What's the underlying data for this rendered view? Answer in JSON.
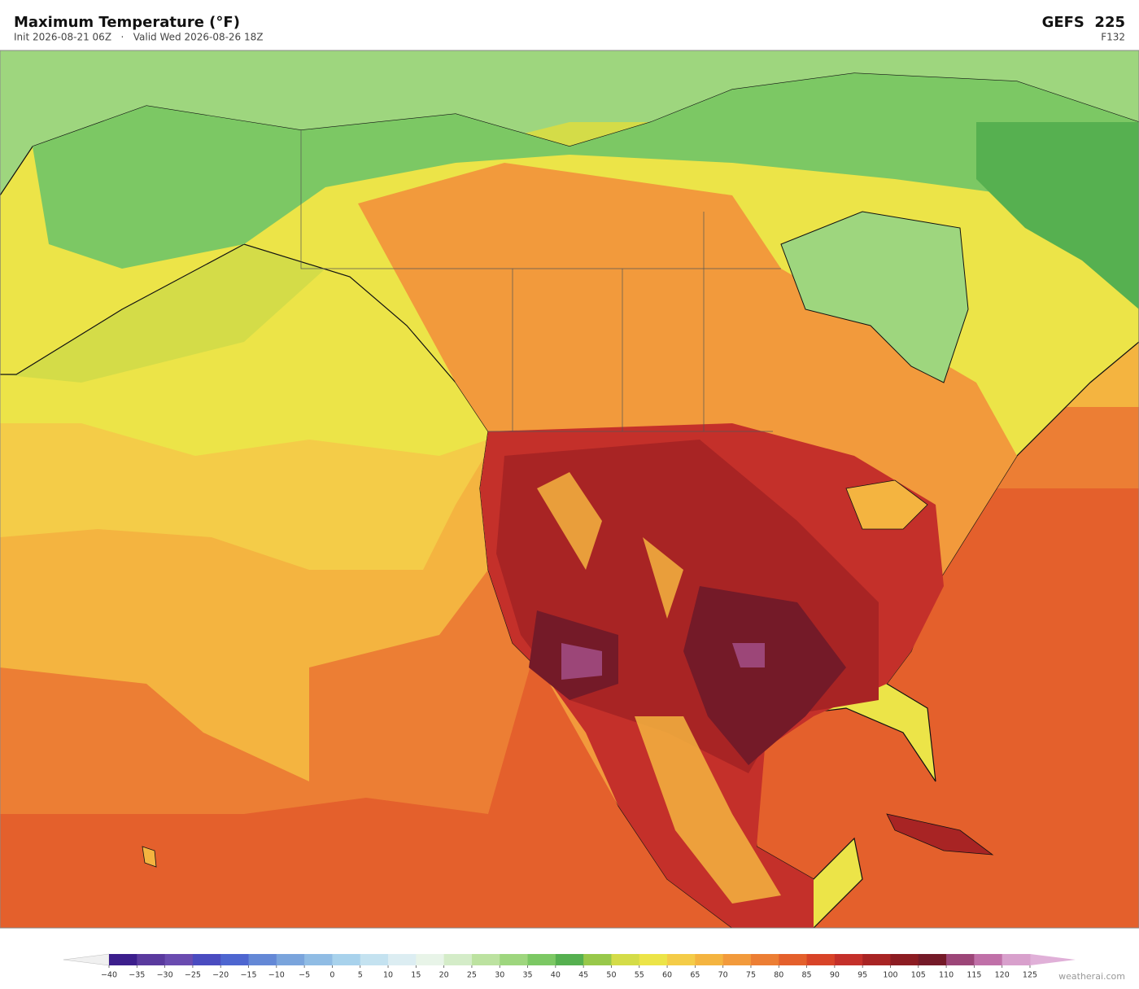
{
  "header": {
    "title": "Maximum Temperature  (°F)",
    "subtitle": "Init 2026-08-21 06Z   ·   Valid Wed 2026-08-26 18Z",
    "model": "GEFS  225",
    "forecast_hour": "F132"
  },
  "colorbar": {
    "ticks": [
      {
        "value": -40,
        "label": "−40"
      },
      {
        "value": -35,
        "label": "−35"
      },
      {
        "value": -30,
        "label": "−30"
      },
      {
        "value": -25,
        "label": "−25"
      },
      {
        "value": -20,
        "label": "−20"
      },
      {
        "value": -15,
        "label": "−15"
      },
      {
        "value": -10,
        "label": "−10"
      },
      {
        "value": -5,
        "label": "−5"
      },
      0,
      5,
      10,
      15,
      20,
      25,
      30,
      35,
      40,
      45,
      50,
      55,
      60,
      65,
      70,
      75,
      80,
      85,
      90,
      95,
      100,
      105,
      110,
      115,
      120,
      125
    ],
    "under_color": "#f0f0f0",
    "over_color": "#e0b0d8",
    "colors": [
      "#3c1e8c",
      "#5a3a9e",
      "#6a4cb0",
      "#4a4cc0",
      "#4e66d0",
      "#6488d6",
      "#7aa4dc",
      "#90bce4",
      "#a8d2ec",
      "#c4e2f0",
      "#dcedf2",
      "#e8f4e8",
      "#d4ecc8",
      "#bce2a0",
      "#9ed67e",
      "#7cc864",
      "#56b050",
      "#98c84a",
      "#d4dc48",
      "#ece448",
      "#f4cc48",
      "#f4b440",
      "#f29a3c",
      "#ec7e34",
      "#e4602c",
      "#d84428",
      "#c4302a",
      "#a82424",
      "#8c1c22",
      "#741a28",
      "#9c4678",
      "#c070a8",
      "#d8a0cc"
    ]
  },
  "watermark": "weatherai.com"
}
